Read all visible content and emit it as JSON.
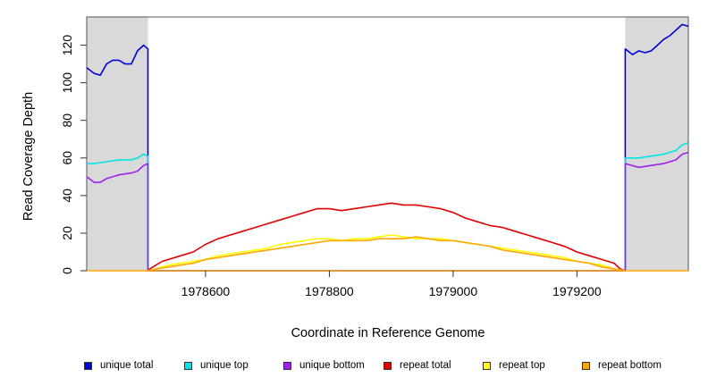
{
  "chart_data": {
    "type": "line",
    "title": "",
    "xlabel": "Coordinate in Reference Genome",
    "ylabel": "Read Coverage Depth",
    "xlim": [
      1978408,
      1979380
    ],
    "ylim": [
      0,
      135
    ],
    "xticks": [
      "1978600",
      "1978800",
      "1979000",
      "1979200"
    ],
    "yticks": [
      "0",
      "20",
      "40",
      "60",
      "80",
      "100",
      "120"
    ],
    "shaded_regions": [
      [
        1978408,
        1978507
      ],
      [
        1979278,
        1979380
      ]
    ],
    "colors": {
      "unique_total": "#0000dd",
      "unique_top": "#00e5e5",
      "unique_bottom": "#a020f0",
      "repeat_total": "#e00000",
      "repeat_top": "#ffff00",
      "repeat_bottom": "#ffa500",
      "shade": "#d9d9d9"
    },
    "legend": [
      "unique total",
      "unique top",
      "unique bottom",
      "repeat total",
      "repeat top",
      "repeat bottom"
    ],
    "series": [
      {
        "name": "unique total",
        "key": "unique_total",
        "x": [
          1978408,
          1978420,
          1978430,
          1978440,
          1978450,
          1978460,
          1978470,
          1978480,
          1978490,
          1978500,
          1978507,
          1978507,
          1979278,
          1979278,
          1979290,
          1979300,
          1979310,
          1979320,
          1979330,
          1979340,
          1979350,
          1979360,
          1979370,
          1979380
        ],
        "y": [
          108,
          105,
          104,
          110,
          112,
          112,
          110,
          110,
          117,
          120,
          118,
          0,
          0,
          118,
          115,
          117,
          116,
          117,
          120,
          123,
          125,
          128,
          131,
          130
        ]
      },
      {
        "name": "unique top",
        "key": "unique_top",
        "x": [
          1978408,
          1978420,
          1978440,
          1978460,
          1978480,
          1978490,
          1978500,
          1978507,
          1978507,
          1979278,
          1979278,
          1979300,
          1979320,
          1979340,
          1979360,
          1979370,
          1979380
        ],
        "y": [
          57,
          57,
          58,
          59,
          59,
          60,
          62,
          61,
          0,
          0,
          60,
          60,
          61,
          62,
          64,
          67,
          68
        ]
      },
      {
        "name": "unique bottom",
        "key": "unique_bottom",
        "x": [
          1978408,
          1978420,
          1978430,
          1978440,
          1978460,
          1978480,
          1978490,
          1978500,
          1978507,
          1978507,
          1979278,
          1979278,
          1979300,
          1979320,
          1979340,
          1979360,
          1979370,
          1979380
        ],
        "y": [
          50,
          47,
          47,
          49,
          51,
          52,
          53,
          56,
          57,
          0,
          0,
          57,
          55,
          56,
          57,
          59,
          62,
          63
        ]
      },
      {
        "name": "repeat total",
        "key": "repeat_total",
        "x": [
          1978507,
          1978510,
          1978520,
          1978530,
          1978540,
          1978560,
          1978580,
          1978600,
          1978620,
          1978640,
          1978660,
          1978680,
          1978700,
          1978720,
          1978740,
          1978760,
          1978780,
          1978800,
          1978820,
          1978840,
          1978860,
          1978880,
          1978900,
          1978920,
          1978940,
          1978960,
          1978980,
          1979000,
          1979020,
          1979040,
          1979060,
          1979080,
          1979100,
          1979120,
          1979140,
          1979160,
          1979180,
          1979200,
          1979220,
          1979240,
          1979260,
          1979270,
          1979278
        ],
        "y": [
          0,
          1,
          3,
          5,
          6,
          8,
          10,
          14,
          17,
          19,
          21,
          23,
          25,
          27,
          29,
          31,
          33,
          33,
          32,
          33,
          34,
          35,
          36,
          35,
          35,
          34,
          33,
          31,
          28,
          26,
          24,
          23,
          21,
          19,
          17,
          15,
          13,
          10,
          8,
          6,
          4,
          1,
          0
        ]
      },
      {
        "name": "repeat top",
        "key": "repeat_top",
        "x": [
          1978507,
          1978520,
          1978540,
          1978560,
          1978580,
          1978600,
          1978620,
          1978640,
          1978660,
          1978680,
          1978700,
          1978720,
          1978740,
          1978760,
          1978780,
          1978800,
          1978820,
          1978840,
          1978860,
          1978880,
          1978900,
          1978920,
          1978940,
          1978960,
          1978980,
          1979000,
          1979020,
          1979040,
          1979060,
          1979080,
          1979100,
          1979120,
          1979140,
          1979160,
          1979180,
          1979200,
          1979220,
          1979240,
          1979260,
          1979278
        ],
        "y": [
          0,
          1,
          3,
          4,
          5,
          6,
          8,
          9,
          10,
          11,
          12,
          14,
          15,
          16,
          17,
          17,
          16,
          17,
          17,
          18,
          19,
          18,
          17,
          17,
          17,
          16,
          15,
          14,
          13,
          12,
          11,
          10,
          9,
          8,
          7,
          5,
          4,
          3,
          1,
          0
        ]
      },
      {
        "name": "repeat bottom",
        "key": "repeat_bottom",
        "x": [
          1978507,
          1978520,
          1978540,
          1978560,
          1978580,
          1978600,
          1978620,
          1978640,
          1978660,
          1978680,
          1978700,
          1978720,
          1978740,
          1978760,
          1978780,
          1978800,
          1978820,
          1978840,
          1978860,
          1978880,
          1978900,
          1978920,
          1978940,
          1978960,
          1978980,
          1979000,
          1979020,
          1979040,
          1979060,
          1979080,
          1979100,
          1979120,
          1979140,
          1979160,
          1979180,
          1979200,
          1979220,
          1979240,
          1979260,
          1979278
        ],
        "y": [
          0,
          1,
          2,
          3,
          4,
          6,
          7,
          8,
          9,
          10,
          11,
          12,
          13,
          14,
          15,
          16,
          16,
          16,
          16,
          17,
          17,
          17,
          18,
          17,
          16,
          16,
          15,
          14,
          13,
          11,
          10,
          9,
          8,
          7,
          6,
          5,
          4,
          2,
          1,
          0
        ]
      },
      {
        "name": "repeat bottom baseline",
        "key": "repeat_bottom",
        "x": [
          1978408,
          1979380
        ],
        "y": [
          0,
          0
        ]
      }
    ]
  }
}
